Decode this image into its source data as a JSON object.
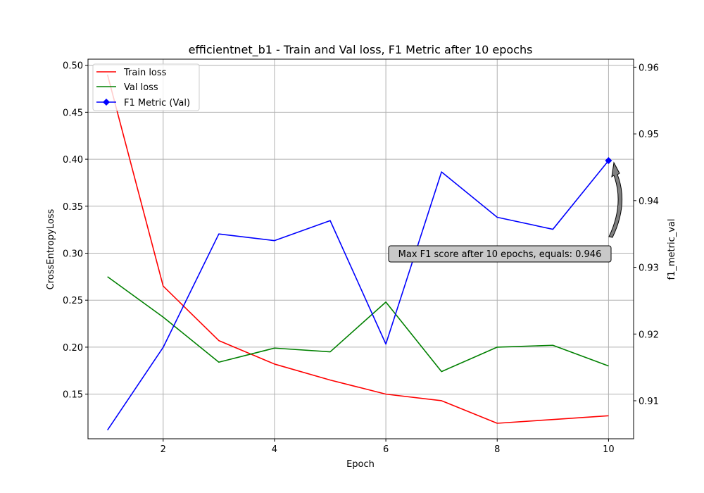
{
  "chart_data": {
    "type": "line",
    "title": "efficientnet_b1 - Train and Val loss, F1 Metric after 10 epochs",
    "xlabel": "Epoch",
    "ylabel_left": "CrossEntropyLoss",
    "ylabel_right": "f1_metric_val",
    "x": [
      1,
      2,
      3,
      4,
      5,
      6,
      7,
      8,
      9,
      10
    ],
    "xlim": [
      0.65,
      10.45
    ],
    "x_ticks": [
      2,
      4,
      6,
      8,
      10
    ],
    "ylim_left": [
      0.1025,
      0.5065
    ],
    "y_ticks_left": [
      0.15,
      0.2,
      0.25,
      0.3,
      0.35,
      0.4,
      0.45,
      0.5
    ],
    "y_tick_labels_left": [
      "0.15",
      "0.20",
      "0.25",
      "0.30",
      "0.35",
      "0.40",
      "0.45",
      "0.50"
    ],
    "ylim_right": [
      0.9043,
      0.9612
    ],
    "y_ticks_right": [
      0.91,
      0.92,
      0.93,
      0.94,
      0.95,
      0.96
    ],
    "y_tick_labels_right": [
      "0.91",
      "0.92",
      "0.93",
      "0.94",
      "0.95",
      "0.96"
    ],
    "grid": true,
    "legend_position": "top-left",
    "series": [
      {
        "name": "Train loss",
        "axis": "left",
        "color": "#ff0000",
        "values": [
          0.49,
          0.265,
          0.207,
          0.182,
          0.165,
          0.15,
          0.143,
          0.119,
          0.123,
          0.127
        ]
      },
      {
        "name": "Val loss",
        "axis": "left",
        "color": "#008000",
        "values": [
          0.275,
          0.232,
          0.184,
          0.199,
          0.195,
          0.248,
          0.174,
          0.2,
          0.202,
          0.18
        ]
      },
      {
        "name": "F1 Metric (Val)",
        "axis": "right",
        "color": "#0000ff",
        "marker_on_last": "diamond",
        "values": [
          0.9056,
          0.918,
          0.935,
          0.934,
          0.937,
          0.9185,
          0.9443,
          0.9375,
          0.9357,
          0.946
        ]
      }
    ],
    "annotation": {
      "text": "Max F1 score after 10 epochs, equals: 0.946",
      "x": 10,
      "y": 0.946
    }
  }
}
